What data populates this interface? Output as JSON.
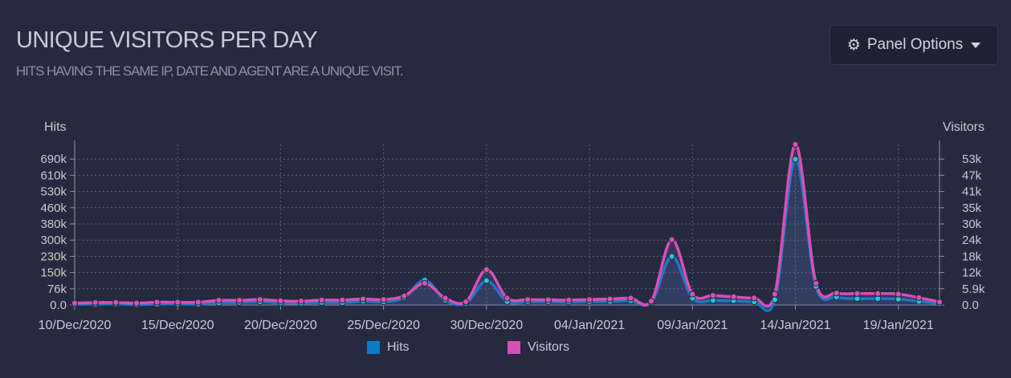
{
  "panel": {
    "title": "UNIQUE VISITORS PER DAY",
    "subtitle": "HITS HAVING THE SAME IP, DATE AND AGENT ARE A UNIQUE VISIT.",
    "options_label": "Panel Options",
    "options_icon": "gear-icon",
    "options_caret_icon": "caret-down-icon"
  },
  "chart_data": {
    "type": "line",
    "y_left_label": "Hits",
    "y_right_label": "Visitors",
    "y_left_ticks": [
      "0.0",
      "76k",
      "150k",
      "230k",
      "300k",
      "380k",
      "460k",
      "530k",
      "610k",
      "690k"
    ],
    "y_right_ticks": [
      "0.0",
      "5.9k",
      "12k",
      "18k",
      "24k",
      "30k",
      "35k",
      "41k",
      "47k",
      "53k"
    ],
    "y_left_lim": [
      0,
      760000
    ],
    "y_right_lim": [
      0,
      59000
    ],
    "x_tick_labels": [
      "10/Dec/2020",
      "15/Dec/2020",
      "20/Dec/2020",
      "25/Dec/2020",
      "30/Dec/2020",
      "04/Jan/2021",
      "09/Jan/2021",
      "14/Jan/2021",
      "19/Jan/2021"
    ],
    "x": [
      "10/Dec/2020",
      "11/Dec/2020",
      "12/Dec/2020",
      "13/Dec/2020",
      "14/Dec/2020",
      "15/Dec/2020",
      "16/Dec/2020",
      "17/Dec/2020",
      "18/Dec/2020",
      "19/Dec/2020",
      "20/Dec/2020",
      "21/Dec/2020",
      "22/Dec/2020",
      "23/Dec/2020",
      "24/Dec/2020",
      "25/Dec/2020",
      "26/Dec/2020",
      "27/Dec/2020",
      "28/Dec/2020",
      "29/Dec/2020",
      "30/Dec/2020",
      "31/Dec/2020",
      "01/Jan/2021",
      "02/Jan/2021",
      "03/Jan/2021",
      "04/Jan/2021",
      "05/Jan/2021",
      "06/Jan/2021",
      "07/Jan/2021",
      "08/Jan/2021",
      "09/Jan/2021",
      "10/Jan/2021",
      "11/Jan/2021",
      "12/Jan/2021",
      "13/Jan/2021",
      "14/Jan/2021",
      "15/Jan/2021",
      "16/Jan/2021",
      "17/Jan/2021",
      "18/Jan/2021",
      "19/Jan/2021",
      "20/Jan/2021",
      "21/Jan/2021"
    ],
    "series": [
      {
        "name": "Hits",
        "axis": "left",
        "color": "#0a7bc4",
        "marker_color": "#1fc6dc",
        "values": [
          3000,
          4000,
          5000,
          2000,
          4000,
          5000,
          4000,
          10000,
          12000,
          15000,
          10000,
          9000,
          12000,
          11000,
          18000,
          15000,
          35000,
          118000,
          22000,
          8000,
          115000,
          16000,
          16000,
          15000,
          14000,
          16000,
          17000,
          20000,
          12000,
          230000,
          32000,
          22000,
          20000,
          15000,
          25000,
          690000,
          88000,
          38000,
          30000,
          30000,
          28000,
          17000,
          7000
        ]
      },
      {
        "name": "Visitors",
        "axis": "right",
        "color": "#d94fb5",
        "marker_color": "#d94fb5",
        "values": [
          700,
          900,
          900,
          700,
          1000,
          1000,
          1000,
          1700,
          1700,
          2000,
          1500,
          1400,
          1800,
          1800,
          2200,
          2000,
          3300,
          8000,
          2500,
          1200,
          13000,
          2500,
          2000,
          1900,
          1800,
          2000,
          2200,
          2500,
          1400,
          24000,
          4000,
          3500,
          3000,
          2600,
          4000,
          59000,
          8000,
          4400,
          4200,
          4200,
          4000,
          2700,
          1100
        ]
      }
    ],
    "grid": true,
    "legend_position": "bottom"
  }
}
